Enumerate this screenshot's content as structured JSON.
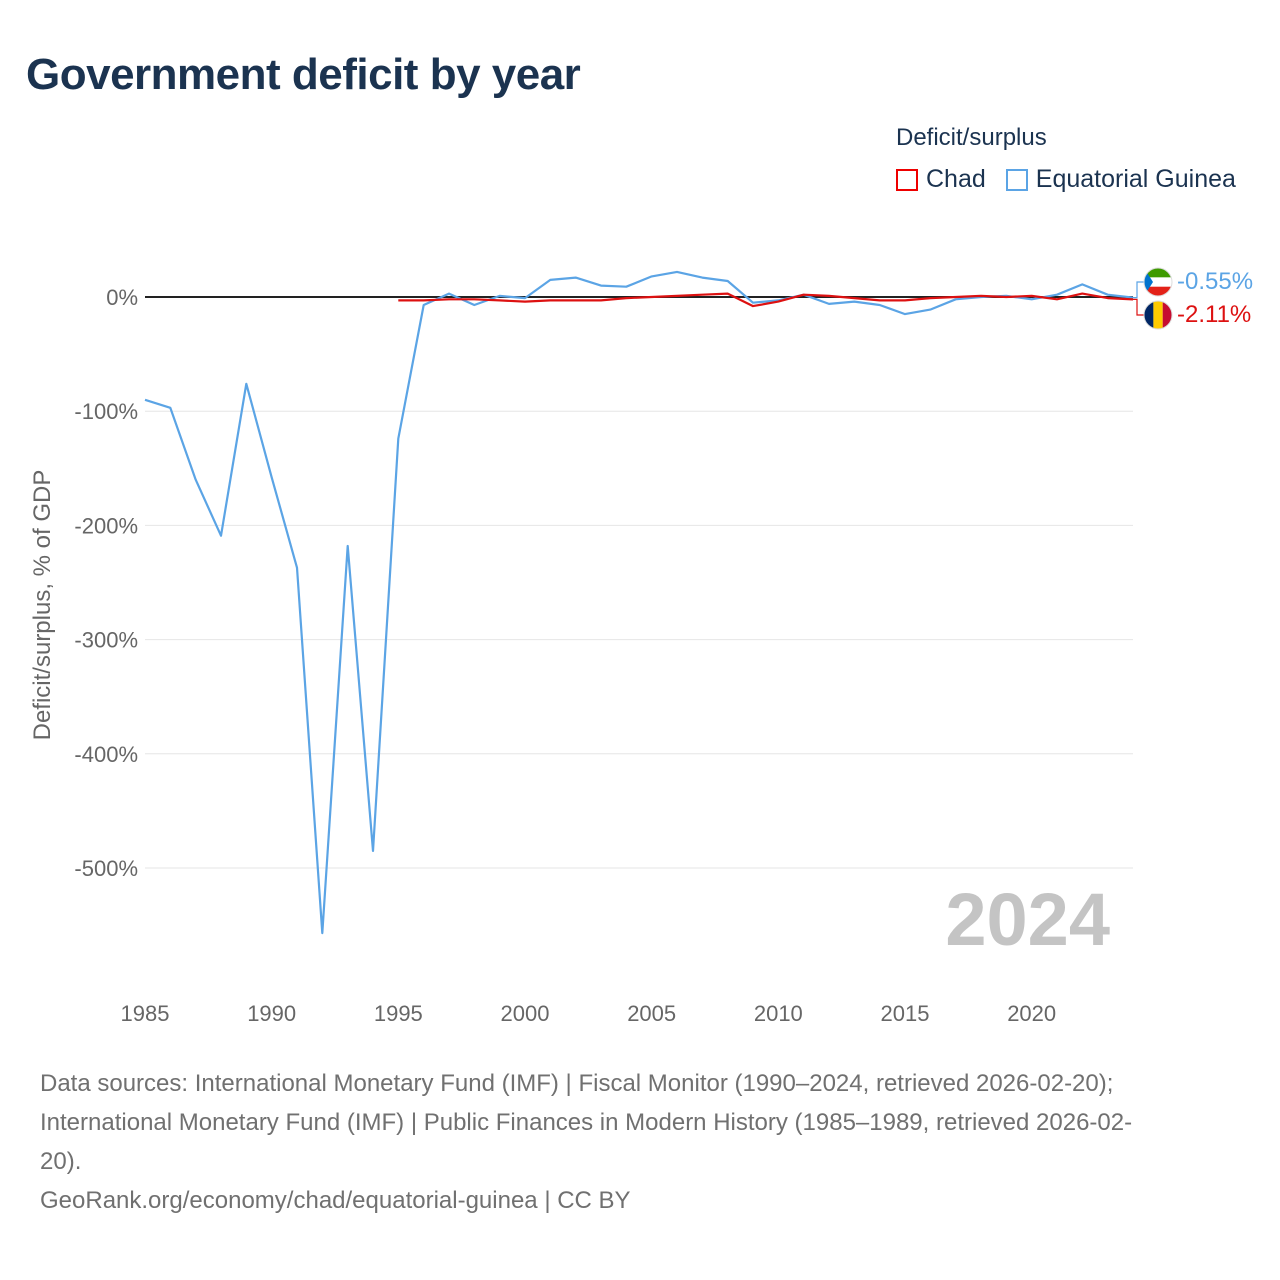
{
  "title": "Government deficit by year",
  "legend": {
    "title": "Deficit/surplus",
    "items": [
      {
        "label": "Chad",
        "color": "#dd1111"
      },
      {
        "label": "Equatorial Guinea",
        "color": "#5ba4e5"
      }
    ]
  },
  "year_watermark": "2024",
  "end_labels": {
    "equatorial_guinea": "-0.55%",
    "chad": "-2.11%"
  },
  "sources": {
    "line1": "Data sources: International Monetary Fund (IMF) | Fiscal Monitor (1990–2024, retrieved 2026-02-20);",
    "line2": "International Monetary Fund (IMF) | Public Finances in Modern History (1985–1989, retrieved 2026-02-",
    "line3": "20).",
    "line4": "GeoRank.org/economy/chad/equatorial-guinea | CC BY"
  },
  "chart_data": {
    "type": "line",
    "title": "Government deficit by year",
    "xlabel": "",
    "ylabel": "Deficit/surplus, % of GDP",
    "xlim": [
      1985,
      2024
    ],
    "ylim": [
      -600,
      50
    ],
    "x_ticks": [
      1985,
      1990,
      1995,
      2000,
      2005,
      2010,
      2015,
      2020
    ],
    "y_ticks": [
      0,
      -100,
      -200,
      -300,
      -400,
      -500
    ],
    "y_tick_labels": [
      "0%",
      "-100%",
      "-200%",
      "-300%",
      "-400%",
      "-500%"
    ],
    "series": [
      {
        "name": "Chad",
        "color": "#dd1111",
        "x": [
          1995,
          1996,
          1997,
          1998,
          1999,
          2000,
          2001,
          2002,
          2003,
          2004,
          2005,
          2006,
          2007,
          2008,
          2009,
          2010,
          2011,
          2012,
          2013,
          2014,
          2015,
          2016,
          2017,
          2018,
          2019,
          2020,
          2021,
          2022,
          2023,
          2024
        ],
        "values": [
          -3,
          -3,
          -2,
          -2,
          -3,
          -4,
          -3,
          -3,
          -3,
          -1,
          0,
          1,
          2,
          3,
          -8,
          -4,
          2,
          1,
          -1,
          -3,
          -3,
          -1,
          0,
          1,
          0,
          1,
          -2,
          3,
          -1,
          -2.11
        ]
      },
      {
        "name": "Equatorial Guinea",
        "color": "#5ba4e5",
        "x": [
          1985,
          1986,
          1987,
          1988,
          1989,
          1990,
          1991,
          1992,
          1993,
          1994,
          1995,
          1996,
          1997,
          1998,
          1999,
          2000,
          2001,
          2002,
          2003,
          2004,
          2005,
          2006,
          2007,
          2008,
          2009,
          2010,
          2011,
          2012,
          2013,
          2014,
          2015,
          2016,
          2017,
          2018,
          2019,
          2020,
          2021,
          2022,
          2023,
          2024
        ],
        "values": [
          -90,
          -97,
          -160,
          -209,
          -76,
          -158,
          -237,
          -557,
          -218,
          -485,
          -124,
          -7,
          3,
          -7,
          1,
          -1,
          15,
          17,
          10,
          9,
          18,
          22,
          17,
          14,
          -5,
          -3,
          2,
          -6,
          -4,
          -7,
          -15,
          -11,
          -2,
          0,
          1,
          -2,
          2,
          11,
          2,
          -0.55
        ]
      }
    ],
    "zero_line": true,
    "legend_position": "top-right"
  }
}
